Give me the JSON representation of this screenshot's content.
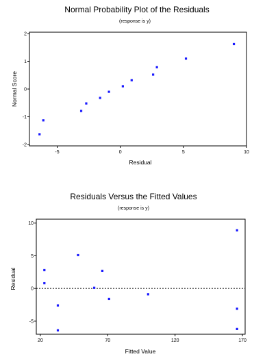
{
  "chart_data": [
    {
      "type": "scatter",
      "title": "Normal Probability Plot of the Residuals",
      "subtitle": "(response is y)",
      "xlabel": "Residual",
      "ylabel": "Normal Score",
      "xlim": [
        -7.2,
        10
      ],
      "ylim": [
        -2.05,
        2.05
      ],
      "xticks": [
        -5,
        0,
        5,
        10
      ],
      "xtick_labels": [
        "-5",
        "0",
        "5",
        "10"
      ],
      "yticks": [
        -2,
        -1,
        0,
        1,
        2
      ],
      "ytick_labels": [
        "-2",
        "-1",
        "0",
        "1",
        "2"
      ],
      "ref_line_y": null,
      "point_color": "#1a1aff",
      "x": [
        -6.4,
        -6.1,
        -3.1,
        -2.7,
        -1.6,
        -0.9,
        0.2,
        0.9,
        2.6,
        2.9,
        5.2,
        9.0
      ],
      "y": [
        -1.63,
        -1.13,
        -0.79,
        -0.52,
        -0.32,
        -0.1,
        0.1,
        0.32,
        0.52,
        0.79,
        1.1,
        1.62
      ]
    },
    {
      "type": "scatter",
      "title": "Residuals Versus the Fitted Values",
      "subtitle": "(response is y)",
      "xlabel": "Fitted Value",
      "ylabel": "Residual",
      "xlim": [
        17,
        172
      ],
      "ylim": [
        -7,
        10.6
      ],
      "xticks": [
        20,
        70,
        120,
        170
      ],
      "xtick_labels": [
        "20",
        "70",
        "120",
        "170"
      ],
      "yticks": [
        -5,
        0,
        5,
        10
      ],
      "ytick_labels": [
        "-5",
        "0",
        "5",
        "10"
      ],
      "ref_line_y": 0,
      "point_color": "#1a1aff",
      "x": [
        23,
        23,
        33,
        33,
        48,
        60,
        66,
        71,
        100,
        166,
        166,
        166
      ],
      "y": [
        2.8,
        0.8,
        -2.6,
        -6.4,
        5.1,
        0.1,
        2.7,
        -1.6,
        -0.9,
        8.9,
        -3.1,
        -6.2
      ]
    }
  ]
}
